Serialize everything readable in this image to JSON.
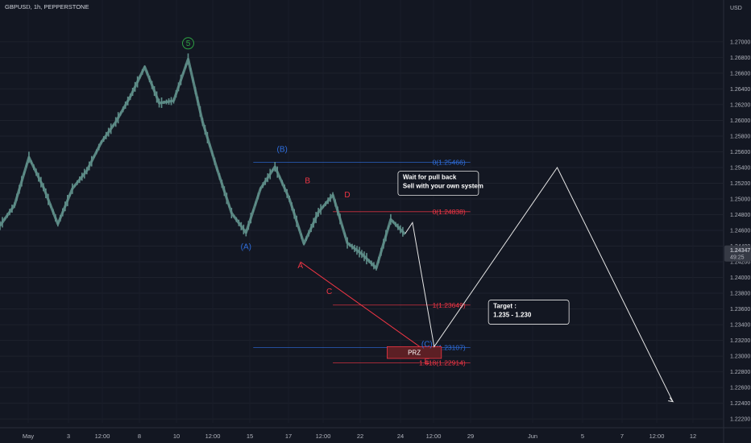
{
  "header": {
    "symbol": "GBPUSD, 1h, PEPPERSTONE",
    "currency": "USD"
  },
  "colors": {
    "background": "#131722",
    "candles": "#5f8f8a",
    "blue": "#2f6fe0",
    "red": "#f23645",
    "green": "#2ea043",
    "white": "#e6e6e6",
    "prz_fill": "#5c1f24"
  },
  "chart_data": {
    "type": "line",
    "symbol": "GBPUSD",
    "timeframe": "1h",
    "broker": "PEPPERSTONE",
    "currency": "USD",
    "ylim": [
      1.2215,
      1.2745
    ],
    "grid": true,
    "y_ticks": [
      "1.27000",
      "1.26800",
      "1.26600",
      "1.26400",
      "1.26200",
      "1.26000",
      "1.25800",
      "1.25600",
      "1.25400",
      "1.25200",
      "1.25000",
      "1.24800",
      "1.24600",
      "1.24400",
      "1.24200",
      "1.24000",
      "1.23800",
      "1.23600",
      "1.23400",
      "1.23200",
      "1.23000",
      "1.22800",
      "1.22600",
      "1.22400",
      "1.22200"
    ],
    "x_ticks": [
      "May",
      "3",
      "12:00",
      "8",
      "10",
      "12:00",
      "15",
      "17",
      "12:00",
      "22",
      "24",
      "12:00",
      "29",
      "Jun",
      "5",
      "7",
      "12:00",
      "12"
    ],
    "last_price": "1.24347",
    "countdown": "49:25",
    "series": [
      {
        "x": [
          0,
          4,
          8,
          12,
          16,
          20,
          24,
          28,
          32,
          36,
          40,
          44,
          48,
          52,
          56,
          60,
          64,
          68,
          72,
          76,
          80,
          84,
          88,
          92,
          96,
          100,
          104,
          108,
          112
        ],
        "values": [
          1.2466,
          1.2492,
          1.2553,
          1.2515,
          1.2468,
          1.2513,
          1.2536,
          1.2572,
          1.2598,
          1.263,
          1.2668,
          1.2622,
          1.2625,
          1.2678,
          1.2598,
          1.2538,
          1.2482,
          1.2457,
          1.2513,
          1.2541,
          1.25,
          1.2443,
          1.2483,
          1.2505,
          1.2444,
          1.243,
          1.2412,
          1.2474,
          1.2455
        ]
      }
    ],
    "wave_labels": [
      {
        "label": "5",
        "x": 52,
        "y": 1.2695
      },
      {
        "label": "(A)",
        "x": 68,
        "y": 1.2436
      },
      {
        "label": "(B)",
        "x": 78,
        "y": 1.256
      },
      {
        "label": "A",
        "x": 83,
        "y": 1.2412
      },
      {
        "label": "B",
        "x": 85,
        "y": 1.252
      },
      {
        "label": "C",
        "x": 91,
        "y": 1.2379
      },
      {
        "label": "D",
        "x": 96,
        "y": 1.2502
      },
      {
        "label": "(C)",
        "x": 118,
        "y": 1.2312
      },
      {
        "label": "E",
        "x": 118,
        "y": 1.229
      }
    ],
    "fib_levels": [
      {
        "label": "0(1.25466)",
        "value": 1.25466,
        "x_start": 70,
        "x_end": 130,
        "color": "blue"
      },
      {
        "label": "0(1.24838)",
        "value": 1.24838,
        "x_start": 92,
        "x_end": 130,
        "color": "red"
      },
      {
        "label": "1(1.23649)",
        "value": 1.23649,
        "x_start": 92,
        "x_end": 130,
        "color": "red"
      },
      {
        "label": "1(1.23107)",
        "value": 1.23107,
        "x_start": 70,
        "x_end": 130,
        "color": "blue"
      },
      {
        "label": "1.618(1.22914)",
        "value": 1.22914,
        "x_start": 92,
        "x_end": 130,
        "color": "red"
      }
    ],
    "projection": {
      "x": [
        112,
        114,
        120,
        154,
        186
      ],
      "values": [
        1.2456,
        1.247,
        1.2312,
        1.254,
        1.2242
      ]
    },
    "red_trendline": {
      "x": [
        83,
        116
      ],
      "values": [
        1.242,
        1.2312
      ]
    },
    "prz": {
      "label": "PRZ",
      "x_start": 107,
      "x_end": 122,
      "y_top": 1.2312,
      "y_bottom": 1.2297
    },
    "annotations": [
      {
        "lines": [
          "Wait for pull back",
          "Sell with your own system"
        ],
        "x": 110,
        "y": 1.2525
      },
      {
        "lines": [
          "Target :",
          "1.235 - 1.230"
        ],
        "x": 135,
        "y": 1.2361
      }
    ]
  }
}
